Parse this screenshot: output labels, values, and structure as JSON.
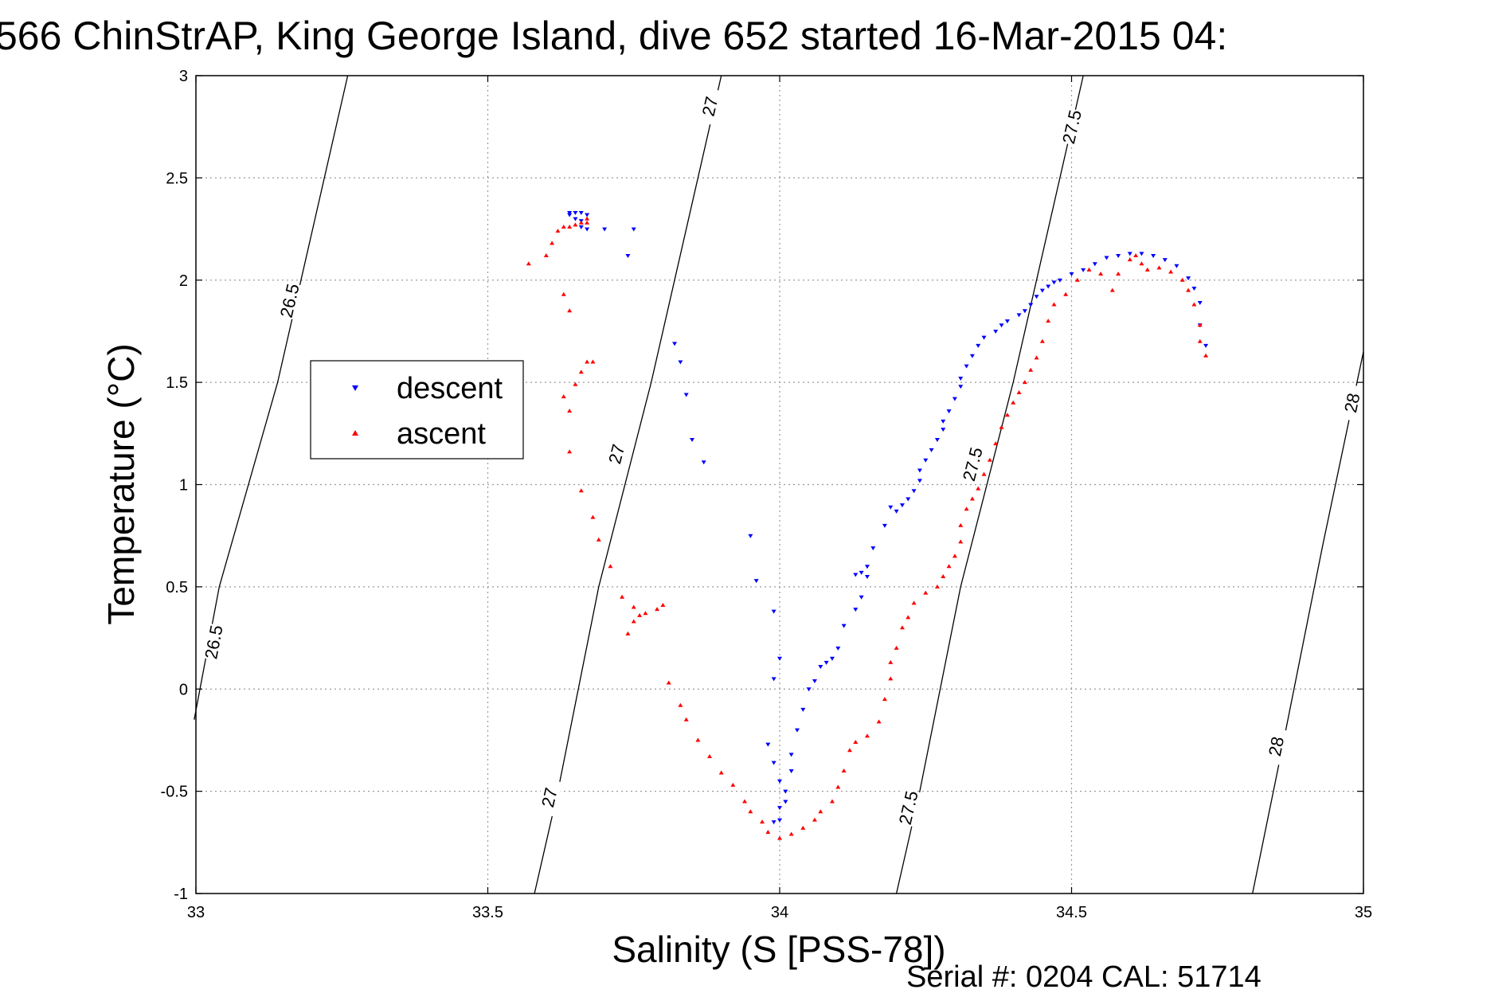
{
  "chart_data": {
    "type": "scatter",
    "title": "566 ChinStrAP, King George Island, dive 652 started 16-Mar-2015 04:",
    "xlabel": "Salinity (S [PSS-78])",
    "ylabel": "Temperature (°C)",
    "xlim": [
      33,
      35
    ],
    "ylim": [
      -1,
      3
    ],
    "xticks": [
      "33",
      "33.5",
      "34",
      "34.5",
      "35"
    ],
    "yticks": [
      "-1",
      "-0.5",
      "0",
      "0.5",
      "1",
      "1.5",
      "2",
      "2.5",
      "3"
    ],
    "grid": true,
    "legend": {
      "position": "upper-left",
      "entries": [
        "descent",
        "ascent"
      ]
    },
    "footer": "Serial #: 0204  CAL: 51714",
    "isopycnals": [
      {
        "label": "26.5",
        "points": [
          [
            32.997,
            -0.15
          ],
          [
            33.04,
            0.5
          ],
          [
            33.14,
            1.5
          ],
          [
            33.26,
            3.0
          ]
        ],
        "label_positions": [
          [
            33.03,
            0.23
          ],
          [
            33.16,
            1.9
          ]
        ]
      },
      {
        "label": "27",
        "points": [
          [
            33.58,
            -1.0
          ],
          [
            33.62,
            -0.5
          ],
          [
            33.69,
            0.5
          ],
          [
            33.78,
            1.5
          ],
          [
            33.9,
            3.0
          ]
        ],
        "label_positions": [
          [
            33.605,
            -0.53
          ],
          [
            33.72,
            1.15
          ],
          [
            33.88,
            2.85
          ]
        ]
      },
      {
        "label": "27.5",
        "points": [
          [
            34.2,
            -1.0
          ],
          [
            34.24,
            -0.5
          ],
          [
            34.31,
            0.5
          ],
          [
            34.4,
            1.5
          ],
          [
            34.52,
            3.0
          ]
        ],
        "label_positions": [
          [
            34.22,
            -0.58
          ],
          [
            34.33,
            1.1
          ],
          [
            34.5,
            2.75
          ]
        ]
      },
      {
        "label": "28",
        "points": [
          [
            34.81,
            -1.0
          ],
          [
            34.86,
            -0.3
          ],
          [
            34.93,
            0.7
          ],
          [
            35.0,
            1.65
          ]
        ],
        "label_positions": [
          [
            34.85,
            -0.28
          ],
          [
            34.98,
            1.4
          ]
        ]
      }
    ],
    "series": [
      {
        "name": "descent",
        "color": "#0000ff",
        "marker": "triangle-down",
        "x": [
          33.64,
          33.65,
          33.66,
          33.67,
          33.64,
          33.65,
          33.66,
          33.66,
          33.67,
          33.7,
          33.75,
          33.74,
          33.82,
          33.83,
          33.84,
          33.85,
          33.87,
          33.95,
          33.96,
          33.99,
          34.0,
          33.99,
          33.98,
          33.99,
          34.0,
          34.01,
          33.99,
          34.0,
          34.0,
          34.01,
          34.02,
          34.02,
          34.03,
          34.04,
          34.05,
          34.06,
          34.07,
          34.08,
          34.09,
          34.1,
          34.11,
          34.13,
          34.14,
          34.15,
          34.13,
          34.14,
          34.15,
          34.16,
          34.18,
          34.2,
          34.19,
          34.21,
          34.22,
          34.23,
          34.24,
          34.24,
          34.25,
          34.26,
          34.27,
          34.28,
          34.28,
          34.29,
          34.3,
          34.31,
          34.31,
          34.32,
          34.33,
          34.34,
          34.35,
          34.37,
          34.38,
          34.39,
          34.41,
          34.42,
          34.43,
          34.44,
          34.45,
          34.46,
          34.47,
          34.48,
          34.5,
          34.52,
          34.54,
          34.56,
          34.58,
          34.6,
          34.62,
          34.64,
          34.66,
          34.68,
          34.7,
          34.71,
          34.72,
          34.72,
          34.73
        ],
        "y": [
          2.33,
          2.33,
          2.33,
          2.32,
          2.32,
          2.3,
          2.29,
          2.26,
          2.25,
          2.25,
          2.25,
          2.12,
          1.69,
          1.6,
          1.44,
          1.22,
          1.11,
          0.75,
          0.53,
          0.38,
          0.15,
          0.05,
          -0.27,
          -0.36,
          -0.45,
          -0.55,
          -0.65,
          -0.64,
          -0.58,
          -0.5,
          -0.4,
          -0.32,
          -0.2,
          -0.1,
          0.0,
          0.04,
          0.11,
          0.13,
          0.15,
          0.2,
          0.31,
          0.39,
          0.45,
          0.55,
          0.56,
          0.57,
          0.6,
          0.69,
          0.8,
          0.87,
          0.89,
          0.9,
          0.93,
          0.97,
          1.02,
          1.07,
          1.12,
          1.17,
          1.22,
          1.27,
          1.31,
          1.36,
          1.42,
          1.48,
          1.52,
          1.58,
          1.63,
          1.68,
          1.72,
          1.75,
          1.78,
          1.8,
          1.83,
          1.85,
          1.88,
          1.92,
          1.95,
          1.97,
          1.99,
          2.0,
          2.03,
          2.05,
          2.08,
          2.11,
          2.12,
          2.13,
          2.13,
          2.12,
          2.1,
          2.07,
          2.01,
          1.96,
          1.89,
          1.78,
          1.68
        ]
      },
      {
        "name": "ascent",
        "color": "#ff0000",
        "marker": "triangle-up",
        "x": [
          33.57,
          33.6,
          33.61,
          33.62,
          33.63,
          33.64,
          33.65,
          33.66,
          33.67,
          33.67,
          33.63,
          33.64,
          33.66,
          33.67,
          33.68,
          33.63,
          33.64,
          33.65,
          33.64,
          33.66,
          33.68,
          33.69,
          33.71,
          33.73,
          33.75,
          33.76,
          33.74,
          33.75,
          33.77,
          33.79,
          33.8,
          33.81,
          33.83,
          33.84,
          33.86,
          33.88,
          33.9,
          33.92,
          33.94,
          33.95,
          33.97,
          33.98,
          34.0,
          34.02,
          34.04,
          34.06,
          34.07,
          34.09,
          34.1,
          34.11,
          34.12,
          34.13,
          34.15,
          34.17,
          34.18,
          34.19,
          34.19,
          34.2,
          34.21,
          34.22,
          34.23,
          34.25,
          34.27,
          34.28,
          34.29,
          34.3,
          34.31,
          34.31,
          34.32,
          34.33,
          34.34,
          34.35,
          34.36,
          34.37,
          34.38,
          34.39,
          34.4,
          34.41,
          34.42,
          34.43,
          34.44,
          34.45,
          34.46,
          34.47,
          34.49,
          34.51,
          34.53,
          34.55,
          34.57,
          34.58,
          34.6,
          34.61,
          34.62,
          34.63,
          34.65,
          34.67,
          34.69,
          34.7,
          34.71,
          34.72,
          34.72,
          34.73
        ],
        "y": [
          2.08,
          2.12,
          2.18,
          2.24,
          2.26,
          2.26,
          2.27,
          2.28,
          2.28,
          2.3,
          1.93,
          1.85,
          1.55,
          1.6,
          1.6,
          1.43,
          1.36,
          1.49,
          1.16,
          0.97,
          0.84,
          0.73,
          0.6,
          0.45,
          0.4,
          0.36,
          0.27,
          0.33,
          0.37,
          0.39,
          0.41,
          0.03,
          -0.08,
          -0.15,
          -0.25,
          -0.33,
          -0.41,
          -0.47,
          -0.55,
          -0.6,
          -0.65,
          -0.7,
          -0.73,
          -0.71,
          -0.68,
          -0.64,
          -0.6,
          -0.55,
          -0.48,
          -0.4,
          -0.3,
          -0.26,
          -0.23,
          -0.16,
          -0.05,
          0.05,
          0.13,
          0.2,
          0.3,
          0.35,
          0.42,
          0.47,
          0.5,
          0.55,
          0.6,
          0.65,
          0.72,
          0.8,
          0.88,
          0.93,
          0.98,
          1.05,
          1.12,
          1.2,
          1.28,
          1.34,
          1.4,
          1.45,
          1.5,
          1.56,
          1.62,
          1.7,
          1.8,
          1.88,
          1.93,
          2.0,
          2.05,
          2.03,
          1.95,
          2.03,
          2.1,
          2.12,
          2.08,
          2.05,
          2.06,
          2.04,
          2.0,
          1.95,
          1.88,
          1.78,
          1.7,
          1.63
        ]
      }
    ]
  }
}
